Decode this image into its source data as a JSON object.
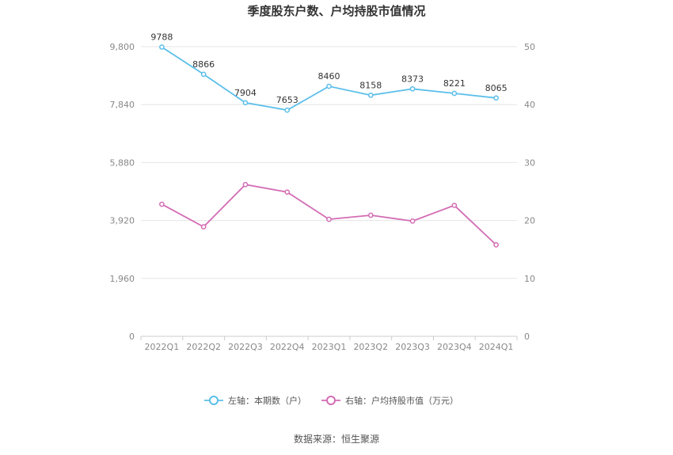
{
  "chart_data": {
    "type": "line",
    "title": "季度股东户数、户均持股市值情况",
    "categories": [
      "2022Q1",
      "2022Q2",
      "2022Q3",
      "2022Q4",
      "2023Q1",
      "2023Q2",
      "2023Q3",
      "2023Q4",
      "2024Q1"
    ],
    "left_axis": {
      "ylim": [
        0,
        9800
      ],
      "ticks": [
        "0",
        "1,960",
        "3,920",
        "5,880",
        "7,840",
        "9,800"
      ]
    },
    "right_axis": {
      "ylim": [
        0,
        50
      ],
      "ticks": [
        "0",
        "10",
        "20",
        "30",
        "40",
        "50"
      ]
    },
    "grid": true,
    "legend_position": "bottom",
    "series": [
      {
        "name": "左轴：本期数（户）",
        "axis": "left",
        "color": "#5bbfea",
        "values": [
          9788,
          8866,
          7904,
          7653,
          8460,
          8158,
          8373,
          8221,
          8065
        ],
        "labels": [
          "9788",
          "8866",
          "7904",
          "7653",
          "8460",
          "8158",
          "8373",
          "8221",
          "8065"
        ]
      },
      {
        "name": "右轴：户均持股市值（万元）",
        "axis": "right",
        "color": "#d36cb4",
        "values": [
          22.8,
          18.9,
          26.2,
          24.9,
          20.2,
          20.9,
          19.9,
          22.6,
          15.8
        ]
      }
    ]
  },
  "source_text": "数据来源：恒生聚源"
}
